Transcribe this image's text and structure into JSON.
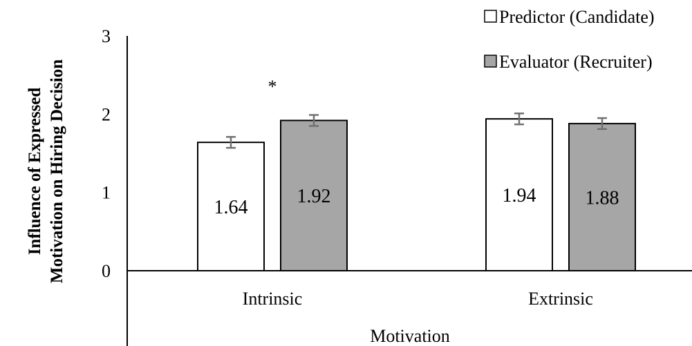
{
  "chart_data": {
    "type": "bar",
    "title": "",
    "xlabel": "Motivation",
    "ylabel": [
      "Influence of Expressed",
      "Motivation on Hiring Decision"
    ],
    "categories": [
      "Intrinsic",
      "Extrinsic"
    ],
    "ylim": [
      0,
      3
    ],
    "yticks": [
      "0",
      "1",
      "2",
      "3"
    ],
    "grid": false,
    "legend": "top-right",
    "series": [
      {
        "name": "Predictor (Candidate)",
        "values": [
          1.64,
          1.94
        ],
        "labels": [
          "1.64",
          "1.94"
        ],
        "errors": [
          0.07,
          0.07
        ],
        "color": "#ffffff"
      },
      {
        "name": "Evaluator (Recruiter)",
        "values": [
          1.92,
          1.88
        ],
        "labels": [
          "1.92",
          "1.88"
        ],
        "errors": [
          0.07,
          0.07
        ],
        "color": "#a6a6a6"
      }
    ],
    "annotations": [
      {
        "text": "*",
        "category": "Intrinsic"
      }
    ]
  }
}
